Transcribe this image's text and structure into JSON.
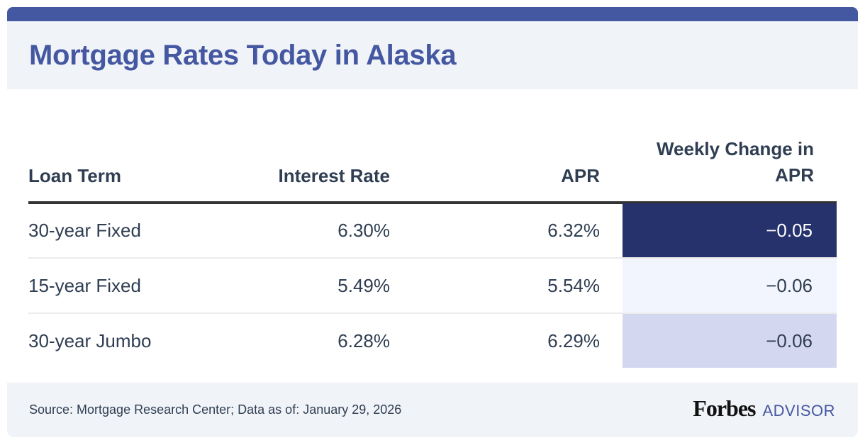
{
  "title": "Mortgage Rates Today in Alaska",
  "colors": {
    "brand_blue": "#4457a1",
    "header_bg": "#f0f3f8",
    "text": "#2f3e52",
    "highlight_dark": "#25326b",
    "highlight_light": "#f2f5fd",
    "highlight_mid": "#d3d8f0"
  },
  "table": {
    "columns": [
      "Loan Term",
      "Interest Rate",
      "APR",
      "Weekly Change in APR"
    ],
    "rows": [
      {
        "loan_term": "30-year Fixed",
        "interest_rate": "6.30%",
        "apr": "6.32%",
        "weekly_change": "−0.05",
        "change_bg": "#25326b",
        "change_color": "#ffffff"
      },
      {
        "loan_term": "15-year Fixed",
        "interest_rate": "5.49%",
        "apr": "5.54%",
        "weekly_change": "−0.06",
        "change_bg": "#f2f5fd",
        "change_color": "#2f3e52"
      },
      {
        "loan_term": "30-year Jumbo",
        "interest_rate": "6.28%",
        "apr": "6.29%",
        "weekly_change": "−0.06",
        "change_bg": "#d3d8f0",
        "change_color": "#2f3e52"
      }
    ]
  },
  "footer": {
    "source": "Source: Mortgage Research Center; Data as of: January 29, 2026",
    "brand_name": "Forbes",
    "brand_suffix": "ADVISOR"
  },
  "chart_data": {
    "type": "table",
    "title": "Mortgage Rates Today in Alaska",
    "columns": [
      "Loan Term",
      "Interest Rate",
      "APR",
      "Weekly Change in APR"
    ],
    "rows": [
      [
        "30-year Fixed",
        6.3,
        6.32,
        -0.05
      ],
      [
        "15-year Fixed",
        5.49,
        5.54,
        -0.06
      ],
      [
        "30-year Jumbo",
        6.28,
        6.29,
        -0.06
      ]
    ],
    "units": {
      "Interest Rate": "%",
      "APR": "%",
      "Weekly Change in APR": "percentage points"
    },
    "source": "Mortgage Research Center",
    "as_of": "January 29, 2026"
  }
}
